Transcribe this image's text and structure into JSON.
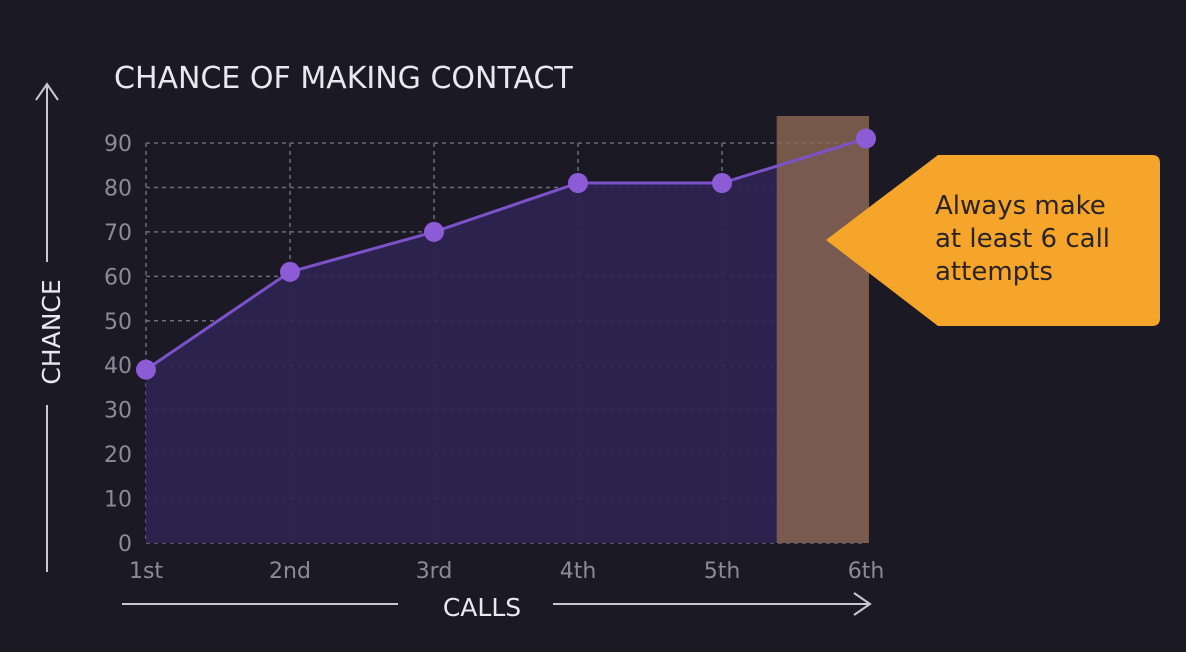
{
  "chart_data": {
    "type": "area",
    "title": "CHANCE OF MAKING CONTACT",
    "xlabel": "CALLS",
    "ylabel": "CHANCE",
    "categories": [
      "1st",
      "2nd",
      "3rd",
      "4th",
      "5th",
      "6th"
    ],
    "values": [
      39,
      61,
      70,
      81,
      81,
      91
    ],
    "ylim": [
      0,
      90
    ],
    "yticks": [
      0,
      10,
      20,
      30,
      40,
      50,
      60,
      70,
      80,
      90
    ],
    "grid": true,
    "highlight_category": "6th",
    "annotation": {
      "lines": [
        "Always make",
        "at least 6 call",
        "attempts"
      ]
    },
    "colors": {
      "background": "#1b1a24",
      "line": "#7b52c7",
      "marker": "#8c5bd6",
      "area": "#2e2352",
      "highlight": "#8a6650",
      "callout": "#f4a52a",
      "grid": "#6e6b7a"
    }
  }
}
